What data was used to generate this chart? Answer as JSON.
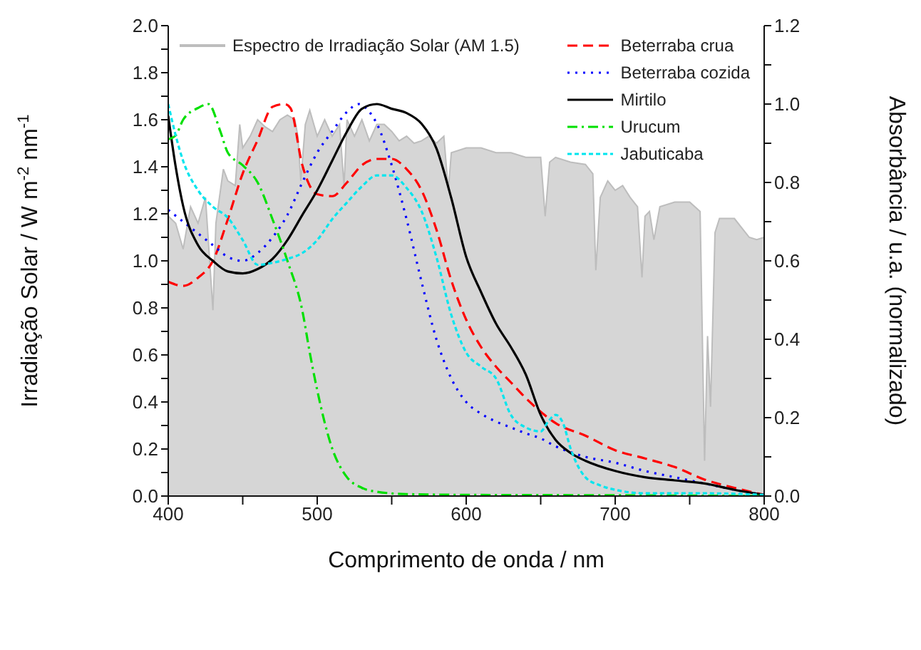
{
  "chart_data": {
    "type": "line",
    "xlabel": "Comprimento de onda / nm",
    "ylabel": "Irradiação Solar / W m$^{-2}$ nm$^{-1}$",
    "y2label": "Absorbância / u.a. (normalizado)",
    "xlim": [
      400,
      800
    ],
    "xticks": [
      400,
      {
        "value": 450,
        "label": null
      },
      500,
      {
        "value": 550,
        "label": null
      },
      600,
      {
        "value": 650,
        "label": null
      },
      700,
      {
        "value": 750,
        "label": null
      },
      800
    ],
    "ylim": [
      0,
      2
    ],
    "yticks": [
      {
        "value": 0,
        "label": "0.0"
      },
      {
        "value": 0.1,
        "label": null
      },
      {
        "value": 0.2,
        "label": "0.2"
      },
      {
        "value": 0.3,
        "label": null
      },
      {
        "value": 0.4,
        "label": "0.4"
      },
      {
        "value": 0.5,
        "label": null
      },
      {
        "value": 0.6,
        "label": "0.6"
      },
      {
        "value": 0.7,
        "label": null
      },
      {
        "value": 0.8,
        "label": "0.8"
      },
      {
        "value": 0.9,
        "label": null
      },
      {
        "value": 1,
        "label": "1.0"
      },
      {
        "value": 1.1,
        "label": null
      },
      {
        "value": 1.2,
        "label": "1.2"
      },
      {
        "value": 1.3,
        "label": null
      },
      {
        "value": 1.4,
        "label": "1.4"
      },
      {
        "value": 1.5,
        "label": null
      },
      {
        "value": 1.6,
        "label": "1.6"
      },
      {
        "value": 1.7,
        "label": null
      },
      {
        "value": 1.8,
        "label": "1.8"
      },
      {
        "value": 1.9,
        "label": null
      },
      {
        "value": 2,
        "label": "2.0"
      }
    ],
    "y2lim": [
      0,
      1.2
    ],
    "y2ticks": [
      {
        "value": 0,
        "label": "0.0"
      },
      {
        "value": 0.1,
        "label": null
      },
      {
        "value": 0.2,
        "label": "0.2"
      },
      {
        "value": 0.3,
        "label": null
      },
      {
        "value": 0.4,
        "label": "0.4"
      },
      {
        "value": 0.5,
        "label": null
      },
      {
        "value": 0.6,
        "label": "0.6"
      },
      {
        "value": 0.7,
        "label": null
      },
      {
        "value": 0.8,
        "label": "0.8"
      },
      {
        "value": 0.9,
        "label": null
      },
      {
        "value": 1,
        "label": "1.0"
      },
      {
        "value": 1.1,
        "label": null
      },
      {
        "value": 1.2,
        "label": "1.2"
      }
    ],
    "marker": "none",
    "legend": "top",
    "series": [
      {
        "name": "Espectro de Irradiação Solar (AM 1.5)",
        "type": "area",
        "color": "#bdbdbd",
        "line_style": "solid",
        "x": [
          400,
          405,
          410,
          415,
          420,
          425,
          430,
          432,
          437,
          440,
          445,
          448,
          450,
          455,
          460,
          465,
          470,
          475,
          480,
          485,
          487,
          489,
          492,
          495,
          500,
          505,
          510,
          515,
          518,
          520,
          525,
          530,
          535,
          540,
          545,
          550,
          555,
          560,
          565,
          570,
          575,
          580,
          585,
          588,
          590,
          600,
          610,
          620,
          630,
          640,
          650,
          653,
          656,
          660,
          670,
          680,
          685,
          687,
          690,
          695,
          700,
          705,
          710,
          715,
          718,
          720,
          723,
          726,
          730,
          740,
          750,
          757,
          760,
          762,
          764,
          767,
          770,
          780,
          785,
          790,
          795,
          800
        ],
        "values": [
          1.19,
          1.16,
          1.05,
          1.23,
          1.16,
          1.27,
          0.79,
          1.16,
          1.39,
          1.34,
          1.32,
          1.58,
          1.48,
          1.53,
          1.6,
          1.57,
          1.55,
          1.6,
          1.62,
          1.6,
          1.53,
          1.34,
          1.58,
          1.64,
          1.53,
          1.6,
          1.53,
          1.58,
          1.32,
          1.6,
          1.53,
          1.6,
          1.51,
          1.58,
          1.58,
          1.55,
          1.51,
          1.53,
          1.5,
          1.51,
          1.53,
          1.5,
          1.53,
          1.3,
          1.46,
          1.48,
          1.48,
          1.46,
          1.46,
          1.44,
          1.44,
          1.19,
          1.42,
          1.44,
          1.42,
          1.41,
          1.37,
          0.96,
          1.27,
          1.34,
          1.3,
          1.32,
          1.27,
          1.23,
          0.93,
          1.19,
          1.21,
          1.09,
          1.23,
          1.25,
          1.25,
          1.21,
          0.15,
          0.68,
          0.38,
          1.12,
          1.18,
          1.18,
          1.14,
          1.1,
          1.09,
          1.1
        ]
      },
      {
        "name": "Beterraba crua",
        "color": "#ff0000",
        "line_style": "dashed",
        "axis": "y2",
        "x": [
          400,
          410,
          420,
          430,
          440,
          450,
          460,
          470,
          478,
          482,
          490,
          500,
          510,
          520,
          530,
          540,
          550,
          560,
          570,
          580,
          590,
          600,
          610,
          620,
          630,
          640,
          650,
          660,
          680,
          700,
          720,
          740,
          760,
          780,
          800
        ],
        "values": [
          0.547,
          0.536,
          0.557,
          0.6,
          0.706,
          0.823,
          0.908,
          0.993,
          1.0,
          0.99,
          0.844,
          0.77,
          0.765,
          0.8,
          0.844,
          0.86,
          0.86,
          0.834,
          0.78,
          0.68,
          0.55,
          0.45,
          0.38,
          0.33,
          0.29,
          0.25,
          0.215,
          0.186,
          0.154,
          0.117,
          0.096,
          0.074,
          0.042,
          0.021,
          0.003
        ]
      },
      {
        "name": "Beterraba cozida",
        "color": "#0000ff",
        "line_style": "dotted",
        "axis": "y2",
        "x": [
          400,
          410,
          420,
          430,
          440,
          450,
          460,
          470,
          480,
          490,
          500,
          510,
          520,
          528,
          535,
          540,
          550,
          560,
          570,
          580,
          590,
          600,
          610,
          620,
          630,
          640,
          650,
          660,
          680,
          700,
          720,
          740,
          760,
          780,
          800
        ],
        "values": [
          0.73,
          0.7,
          0.67,
          0.64,
          0.61,
          0.6,
          0.62,
          0.66,
          0.717,
          0.8,
          0.876,
          0.93,
          0.98,
          1.0,
          0.98,
          0.95,
          0.844,
          0.706,
          0.547,
          0.4,
          0.3,
          0.24,
          0.21,
          0.19,
          0.175,
          0.16,
          0.147,
          0.127,
          0.1,
          0.085,
          0.064,
          0.048,
          0.032,
          0.016,
          0.003
        ]
      },
      {
        "name": "Mirtilo",
        "color": "#000000",
        "line_style": "solid",
        "axis": "y2",
        "x": [
          400,
          405,
          410,
          420,
          430,
          440,
          450,
          460,
          470,
          480,
          490,
          500,
          510,
          520,
          530,
          540,
          550,
          560,
          570,
          580,
          590,
          600,
          610,
          620,
          630,
          640,
          650,
          660,
          670,
          680,
          700,
          720,
          740,
          760,
          780,
          800
        ],
        "values": [
          0.97,
          0.84,
          0.74,
          0.64,
          0.6,
          0.573,
          0.568,
          0.579,
          0.605,
          0.653,
          0.717,
          0.78,
          0.855,
          0.93,
          0.988,
          1.0,
          0.988,
          0.977,
          0.95,
          0.887,
          0.76,
          0.61,
          0.52,
          0.44,
          0.38,
          0.31,
          0.207,
          0.143,
          0.11,
          0.09,
          0.064,
          0.048,
          0.04,
          0.032,
          0.016,
          0.003
        ]
      },
      {
        "name": "Urucum",
        "color": "#00e000",
        "line_style": "dashdot",
        "axis": "y2",
        "x": [
          400,
          405,
          410,
          420,
          427,
          435,
          440,
          450,
          460,
          470,
          480,
          490,
          495,
          500,
          510,
          520,
          530,
          540,
          560,
          600,
          700,
          800
        ],
        "values": [
          0.91,
          0.92,
          0.96,
          0.99,
          1.0,
          0.93,
          0.876,
          0.844,
          0.8,
          0.706,
          0.6,
          0.473,
          0.366,
          0.27,
          0.122,
          0.048,
          0.021,
          0.011,
          0.005,
          0.003,
          0.002,
          0.0
        ]
      },
      {
        "name": "Jabuticaba",
        "color": "#00e5ee",
        "line_style": "dashed",
        "axis": "y2",
        "x": [
          400,
          405,
          410,
          420,
          430,
          440,
          450,
          460,
          470,
          480,
          490,
          500,
          510,
          520,
          530,
          540,
          550,
          560,
          570,
          580,
          590,
          600,
          610,
          620,
          630,
          640,
          650,
          655,
          660,
          665,
          670,
          680,
          690,
          700,
          720,
          760,
          800
        ],
        "values": [
          1.0,
          0.92,
          0.855,
          0.78,
          0.738,
          0.71,
          0.653,
          0.59,
          0.595,
          0.605,
          0.62,
          0.653,
          0.706,
          0.749,
          0.79,
          0.818,
          0.818,
          0.786,
          0.727,
          0.61,
          0.462,
          0.366,
          0.33,
          0.3,
          0.207,
          0.175,
          0.165,
          0.19,
          0.207,
          0.186,
          0.122,
          0.048,
          0.027,
          0.016,
          0.007,
          0.007,
          0.003
        ]
      }
    ]
  }
}
